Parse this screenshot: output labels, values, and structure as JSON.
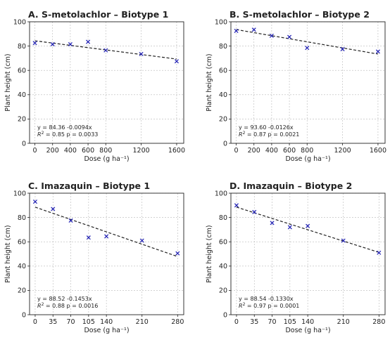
{
  "chart_data": [
    {
      "type": "scatter",
      "title": "A. S-metolachlor – Biotype 1",
      "xlabel": "Dose (g ha⁻¹)",
      "ylabel": "Plant height (cm)",
      "xlim": [
        -60,
        1680
      ],
      "ylim": [
        0,
        100
      ],
      "xticks": [
        0,
        200,
        400,
        600,
        800,
        1200,
        1600
      ],
      "yticks": [
        0,
        20,
        40,
        60,
        80,
        100
      ],
      "grid": true,
      "x": [
        0,
        200,
        400,
        600,
        800,
        1200,
        1600
      ],
      "y": [
        82.5,
        81.5,
        81.5,
        83.5,
        76.5,
        73.5,
        67.5
      ],
      "fit": {
        "intercept": 84.36,
        "slope": -0.0094
      },
      "equation": "y = 84.36 -0.0094x",
      "r2_prefix": "R",
      "r2_text": " = 0.85   p = 0.0033"
    },
    {
      "type": "scatter",
      "title": "B. S-metolachlor – Biotype 2",
      "xlabel": "Dose (g ha⁻¹)",
      "ylabel": "Plant height (cm)",
      "xlim": [
        -60,
        1680
      ],
      "ylim": [
        0,
        100
      ],
      "xticks": [
        0,
        200,
        400,
        600,
        800,
        1200,
        1600
      ],
      "yticks": [
        0,
        20,
        40,
        60,
        80,
        100
      ],
      "grid": true,
      "x": [
        0,
        200,
        400,
        600,
        800,
        1200,
        1600
      ],
      "y": [
        92.5,
        93.5,
        88.5,
        87.5,
        78.5,
        77.5,
        75.5
      ],
      "fit": {
        "intercept": 93.6,
        "slope": -0.0126
      },
      "equation": "y = 93.60 -0.0126x",
      "r2_prefix": "R",
      "r2_text": " = 0.87   p = 0.0021"
    },
    {
      "type": "scatter",
      "title": "C. Imazaquin – Biotype 1",
      "xlabel": "Dose (g ha⁻¹)",
      "ylabel": "Plant height (cm)",
      "xlim": [
        -11,
        292
      ],
      "ylim": [
        0,
        100
      ],
      "xticks": [
        0,
        35,
        70,
        105,
        140,
        210,
        280
      ],
      "yticks": [
        0,
        20,
        40,
        60,
        80,
        100
      ],
      "grid": true,
      "x": [
        0,
        35,
        70,
        105,
        140,
        210,
        280
      ],
      "y": [
        93,
        87,
        77.5,
        63.5,
        64.5,
        61,
        50.5
      ],
      "fit": {
        "intercept": 88.52,
        "slope": -0.1453
      },
      "equation": "y = 88.52 -0.1453x",
      "r2_prefix": "R",
      "r2_text": " = 0.88   p = 0.0016"
    },
    {
      "type": "scatter",
      "title": "D. Imazaquin – Biotype 2",
      "xlabel": "Dose (g ha⁻¹)",
      "ylabel": "Plant height (cm)",
      "xlim": [
        -11,
        292
      ],
      "ylim": [
        0,
        100
      ],
      "xticks": [
        0,
        35,
        70,
        105,
        140,
        210,
        280
      ],
      "yticks": [
        0,
        20,
        40,
        60,
        80,
        100
      ],
      "grid": true,
      "x": [
        0,
        35,
        70,
        105,
        140,
        210,
        280
      ],
      "y": [
        90,
        84.5,
        75.5,
        72,
        73,
        61,
        51
      ],
      "fit": {
        "intercept": 88.54,
        "slope": -0.133
      },
      "equation": "y = 88.54 -0.1330x",
      "r2_prefix": "R",
      "r2_text": " = 0.97   p = 0.0001"
    }
  ],
  "colors": {
    "marker": "#1f1fb4",
    "fit_line": "#222222",
    "grid": "#b8b8b8",
    "text": "#222222"
  }
}
